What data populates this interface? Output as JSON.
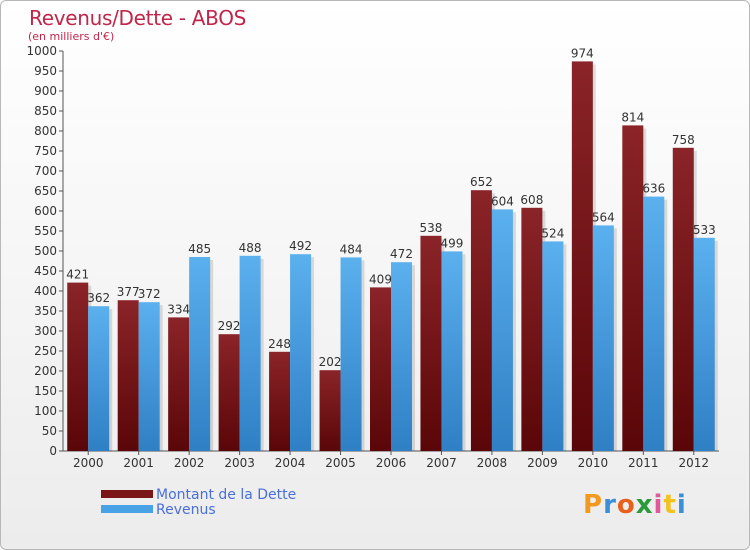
{
  "header": {
    "title": "Revenus/Dette - ABOS",
    "subtitle": "(en milliers d'€)"
  },
  "colors": {
    "dette": "#7a1618",
    "revenus": "#4aa2e6",
    "title": "#c0264a"
  },
  "chart_data": {
    "type": "bar",
    "title": "Revenus/Dette - ABOS",
    "ylabel": "(en milliers d'€)",
    "ylim": [
      0,
      1000
    ],
    "ytick_step": 50,
    "grid": false,
    "legend_position": "bottom-left",
    "categories": [
      "2000",
      "2001",
      "2002",
      "2003",
      "2004",
      "2005",
      "2006",
      "2007",
      "2008",
      "2009",
      "2010",
      "2011",
      "2012"
    ],
    "series": [
      {
        "name": "Montant de la Dette",
        "color": "#7a1618",
        "values": [
          421,
          377,
          334,
          292,
          248,
          202,
          409,
          538,
          652,
          608,
          974,
          814,
          758
        ]
      },
      {
        "name": "Revenus",
        "color": "#4aa2e6",
        "values": [
          362,
          372,
          485,
          488,
          492,
          484,
          472,
          499,
          604,
          524,
          564,
          636,
          533
        ]
      }
    ]
  },
  "legend": {
    "items": [
      {
        "label": "Montant de la Dette"
      },
      {
        "label": "Revenus"
      }
    ]
  },
  "logo": {
    "text": "Proxiti"
  }
}
